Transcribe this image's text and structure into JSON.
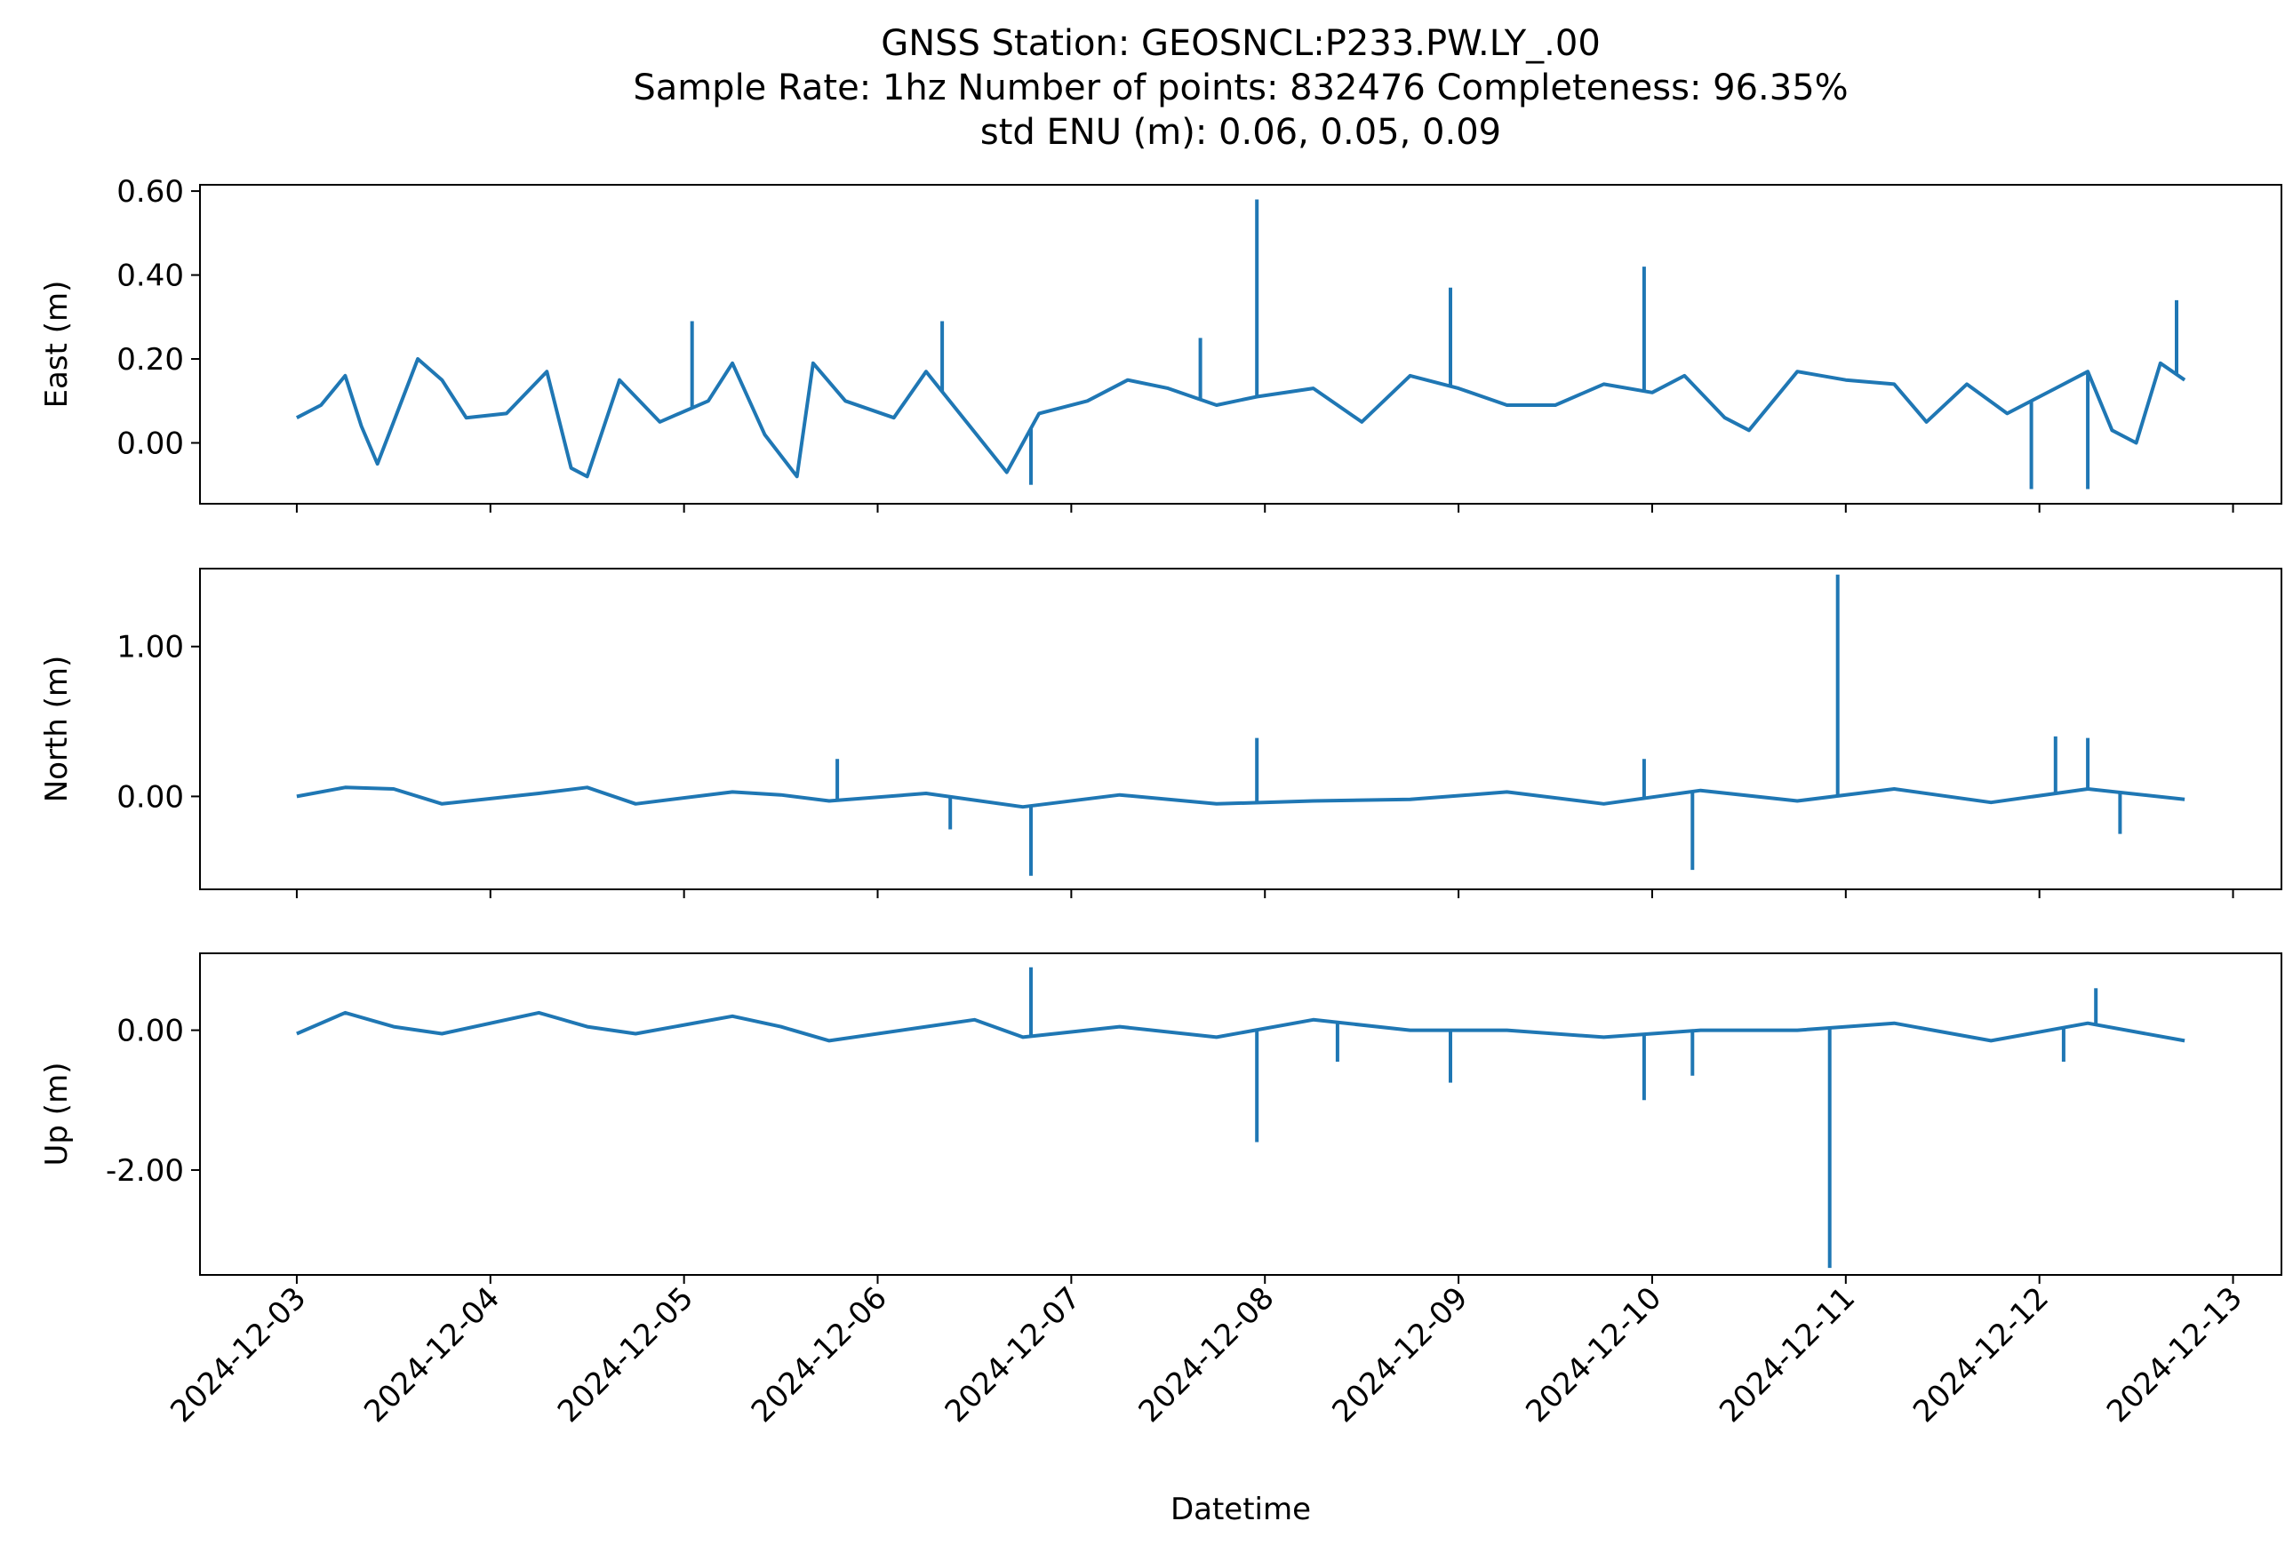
{
  "chart_data": {
    "type": "line",
    "title": [
      "GNSS Station: GEOSNCL:P233.PW.LY_.00",
      "Sample Rate: 1hz   Number of points: 832476    Completeness:  96.35%",
      "std ENU (m):  0.06, 0.05, 0.09"
    ],
    "xlabel": "Datetime",
    "x_axis": {
      "type": "date",
      "range": [
        "2024-12-02T12:00",
        "2024-12-13T06:00"
      ],
      "ticks": [
        "2024-12-03",
        "2024-12-04",
        "2024-12-05",
        "2024-12-06",
        "2024-12-07",
        "2024-12-08",
        "2024-12-09",
        "2024-12-10",
        "2024-12-11",
        "2024-12-12",
        "2024-12-13"
      ]
    },
    "line_color": "#1f77b4",
    "grid": false,
    "legend": "none",
    "panels": [
      {
        "ylabel": "East (m)",
        "ylim": [
          -0.145,
          0.615
        ],
        "yticks": [
          {
            "value": 0.6,
            "label": "0.60"
          },
          {
            "value": 0.4,
            "label": "0.40"
          },
          {
            "value": 0.2,
            "label": "0.20"
          },
          {
            "value": 0.0,
            "label": "0.00"
          }
        ],
        "series": [
          {
            "x": "2024-12-03T00:00",
            "y": 0.06
          },
          {
            "x": "2024-12-03T03:00",
            "y": 0.09
          },
          {
            "x": "2024-12-03T06:00",
            "y": 0.16
          },
          {
            "x": "2024-12-03T08:00",
            "y": 0.04
          },
          {
            "x": "2024-12-03T10:00",
            "y": -0.05
          },
          {
            "x": "2024-12-03T12:00",
            "y": 0.05
          },
          {
            "x": "2024-12-03T15:00",
            "y": 0.2
          },
          {
            "x": "2024-12-03T18:00",
            "y": 0.15
          },
          {
            "x": "2024-12-03T21:00",
            "y": 0.06
          },
          {
            "x": "2024-12-04T02:00",
            "y": 0.07
          },
          {
            "x": "2024-12-04T07:00",
            "y": 0.17
          },
          {
            "x": "2024-12-04T10:00",
            "y": -0.06
          },
          {
            "x": "2024-12-04T12:00",
            "y": -0.08
          },
          {
            "x": "2024-12-04T16:00",
            "y": 0.15
          },
          {
            "x": "2024-12-04T21:00",
            "y": 0.05
          },
          {
            "x": "2024-12-05T03:00",
            "y": 0.1
          },
          {
            "x": "2024-12-05T06:00",
            "y": 0.19
          },
          {
            "x": "2024-12-05T10:00",
            "y": 0.02
          },
          {
            "x": "2024-12-05T14:00",
            "y": -0.08
          },
          {
            "x": "2024-12-05T16:00",
            "y": 0.19
          },
          {
            "x": "2024-12-05T20:00",
            "y": 0.1
          },
          {
            "x": "2024-12-06T02:00",
            "y": 0.06
          },
          {
            "x": "2024-12-06T06:00",
            "y": 0.17
          },
          {
            "x": "2024-12-06T11:00",
            "y": 0.05
          },
          {
            "x": "2024-12-06T16:00",
            "y": -0.07
          },
          {
            "x": "2024-12-06T20:00",
            "y": 0.07
          },
          {
            "x": "2024-12-07T02:00",
            "y": 0.1
          },
          {
            "x": "2024-12-07T07:00",
            "y": 0.15
          },
          {
            "x": "2024-12-07T12:00",
            "y": 0.13
          },
          {
            "x": "2024-12-07T18:00",
            "y": 0.09
          },
          {
            "x": "2024-12-07T23:00",
            "y": 0.11
          },
          {
            "x": "2024-12-08T06:00",
            "y": 0.13
          },
          {
            "x": "2024-12-08T12:00",
            "y": 0.05
          },
          {
            "x": "2024-12-08T18:00",
            "y": 0.16
          },
          {
            "x": "2024-12-09T00:00",
            "y": 0.13
          },
          {
            "x": "2024-12-09T06:00",
            "y": 0.09
          },
          {
            "x": "2024-12-09T12:00",
            "y": 0.09
          },
          {
            "x": "2024-12-09T18:00",
            "y": 0.14
          },
          {
            "x": "2024-12-10T00:00",
            "y": 0.12
          },
          {
            "x": "2024-12-10T04:00",
            "y": 0.16
          },
          {
            "x": "2024-12-10T09:00",
            "y": 0.06
          },
          {
            "x": "2024-12-10T12:00",
            "y": 0.03
          },
          {
            "x": "2024-12-10T18:00",
            "y": 0.17
          },
          {
            "x": "2024-12-11T00:00",
            "y": 0.15
          },
          {
            "x": "2024-12-11T06:00",
            "y": 0.14
          },
          {
            "x": "2024-12-11T10:00",
            "y": 0.05
          },
          {
            "x": "2024-12-11T15:00",
            "y": 0.14
          },
          {
            "x": "2024-12-11T20:00",
            "y": 0.07
          },
          {
            "x": "2024-12-12T02:00",
            "y": 0.13
          },
          {
            "x": "2024-12-12T06:00",
            "y": 0.17
          },
          {
            "x": "2024-12-12T09:00",
            "y": 0.03
          },
          {
            "x": "2024-12-12T12:00",
            "y": 0.0
          },
          {
            "x": "2024-12-12T15:00",
            "y": 0.19
          },
          {
            "x": "2024-12-12T18:00",
            "y": 0.15
          }
        ],
        "spikes": [
          {
            "x": "2024-12-07T23:00",
            "y": 0.58
          },
          {
            "x": "2024-12-08T23:00",
            "y": 0.37
          },
          {
            "x": "2024-12-09T23:00",
            "y": 0.42
          },
          {
            "x": "2024-12-05T01:00",
            "y": 0.29
          },
          {
            "x": "2024-12-06T08:00",
            "y": 0.29
          },
          {
            "x": "2024-12-07T16:00",
            "y": 0.25
          },
          {
            "x": "2024-12-12T17:00",
            "y": 0.34
          },
          {
            "x": "2024-12-11T23:00",
            "y": -0.11
          },
          {
            "x": "2024-12-12T06:00",
            "y": -0.11
          },
          {
            "x": "2024-12-06T19:00",
            "y": -0.1
          }
        ]
      },
      {
        "ylabel": "North (m)",
        "ylim": [
          -0.62,
          1.52
        ],
        "yticks": [
          {
            "value": 1.0,
            "label": "1.00"
          },
          {
            "value": 0.0,
            "label": "0.00"
          }
        ],
        "series": [
          {
            "x": "2024-12-03T00:00",
            "y": 0.0
          },
          {
            "x": "2024-12-03T06:00",
            "y": 0.06
          },
          {
            "x": "2024-12-03T12:00",
            "y": 0.05
          },
          {
            "x": "2024-12-03T18:00",
            "y": -0.05
          },
          {
            "x": "2024-12-04T06:00",
            "y": 0.02
          },
          {
            "x": "2024-12-04T12:00",
            "y": 0.06
          },
          {
            "x": "2024-12-04T18:00",
            "y": -0.05
          },
          {
            "x": "2024-12-05T06:00",
            "y": 0.03
          },
          {
            "x": "2024-12-05T12:00",
            "y": 0.01
          },
          {
            "x": "2024-12-05T18:00",
            "y": -0.03
          },
          {
            "x": "2024-12-06T06:00",
            "y": 0.02
          },
          {
            "x": "2024-12-06T18:00",
            "y": -0.07
          },
          {
            "x": "2024-12-07T06:00",
            "y": 0.01
          },
          {
            "x": "2024-12-07T18:00",
            "y": -0.05
          },
          {
            "x": "2024-12-08T06:00",
            "y": -0.03
          },
          {
            "x": "2024-12-08T18:00",
            "y": -0.02
          },
          {
            "x": "2024-12-09T06:00",
            "y": 0.03
          },
          {
            "x": "2024-12-09T18:00",
            "y": -0.05
          },
          {
            "x": "2024-12-10T06:00",
            "y": 0.04
          },
          {
            "x": "2024-12-10T18:00",
            "y": -0.03
          },
          {
            "x": "2024-12-11T06:00",
            "y": 0.05
          },
          {
            "x": "2024-12-11T18:00",
            "y": -0.04
          },
          {
            "x": "2024-12-12T06:00",
            "y": 0.05
          },
          {
            "x": "2024-12-12T18:00",
            "y": -0.02
          }
        ],
        "spikes": [
          {
            "x": "2024-12-10T23:00",
            "y": 1.48
          },
          {
            "x": "2024-12-07T23:00",
            "y": 0.39
          },
          {
            "x": "2024-12-12T02:00",
            "y": 0.4
          },
          {
            "x": "2024-12-12T06:00",
            "y": 0.39
          },
          {
            "x": "2024-12-09T23:00",
            "y": 0.25
          },
          {
            "x": "2024-12-05T19:00",
            "y": 0.25
          },
          {
            "x": "2024-12-06T19:00",
            "y": -0.53
          },
          {
            "x": "2024-12-10T05:00",
            "y": -0.49
          },
          {
            "x": "2024-12-06T09:00",
            "y": -0.22
          },
          {
            "x": "2024-12-12T10:00",
            "y": -0.25
          }
        ]
      },
      {
        "ylabel": "Up (m)",
        "ylim": [
          -3.5,
          1.1
        ],
        "yticks": [
          {
            "value": 0.0,
            "label": "0.00"
          },
          {
            "value": -2.0,
            "label": "-2.00"
          }
        ],
        "series": [
          {
            "x": "2024-12-03T00:00",
            "y": -0.05
          },
          {
            "x": "2024-12-03T06:00",
            "y": 0.25
          },
          {
            "x": "2024-12-03T12:00",
            "y": 0.05
          },
          {
            "x": "2024-12-03T18:00",
            "y": -0.05
          },
          {
            "x": "2024-12-04T06:00",
            "y": 0.25
          },
          {
            "x": "2024-12-04T12:00",
            "y": 0.05
          },
          {
            "x": "2024-12-04T18:00",
            "y": -0.05
          },
          {
            "x": "2024-12-05T06:00",
            "y": 0.2
          },
          {
            "x": "2024-12-05T12:00",
            "y": 0.05
          },
          {
            "x": "2024-12-05T18:00",
            "y": -0.15
          },
          {
            "x": "2024-12-06T06:00",
            "y": 0.05
          },
          {
            "x": "2024-12-06T12:00",
            "y": 0.15
          },
          {
            "x": "2024-12-06T18:00",
            "y": -0.1
          },
          {
            "x": "2024-12-07T06:00",
            "y": 0.05
          },
          {
            "x": "2024-12-07T18:00",
            "y": -0.1
          },
          {
            "x": "2024-12-08T06:00",
            "y": 0.15
          },
          {
            "x": "2024-12-08T18:00",
            "y": 0.0
          },
          {
            "x": "2024-12-09T06:00",
            "y": 0.0
          },
          {
            "x": "2024-12-09T18:00",
            "y": -0.1
          },
          {
            "x": "2024-12-10T06:00",
            "y": 0.0
          },
          {
            "x": "2024-12-10T18:00",
            "y": 0.0
          },
          {
            "x": "2024-12-11T06:00",
            "y": 0.1
          },
          {
            "x": "2024-12-11T18:00",
            "y": -0.15
          },
          {
            "x": "2024-12-12T06:00",
            "y": 0.1
          },
          {
            "x": "2024-12-12T18:00",
            "y": -0.15
          }
        ],
        "spikes": [
          {
            "x": "2024-12-10T22:00",
            "y": -3.4
          },
          {
            "x": "2024-12-07T23:00",
            "y": -1.6
          },
          {
            "x": "2024-12-09T23:00",
            "y": -1.0
          },
          {
            "x": "2024-12-08T23:00",
            "y": -0.75
          },
          {
            "x": "2024-12-10T05:00",
            "y": -0.65
          },
          {
            "x": "2024-12-06T19:00",
            "y": 0.9
          },
          {
            "x": "2024-12-12T07:00",
            "y": 0.6
          },
          {
            "x": "2024-12-12T03:00",
            "y": -0.45
          },
          {
            "x": "2024-12-08T09:00",
            "y": -0.45
          }
        ]
      }
    ]
  }
}
